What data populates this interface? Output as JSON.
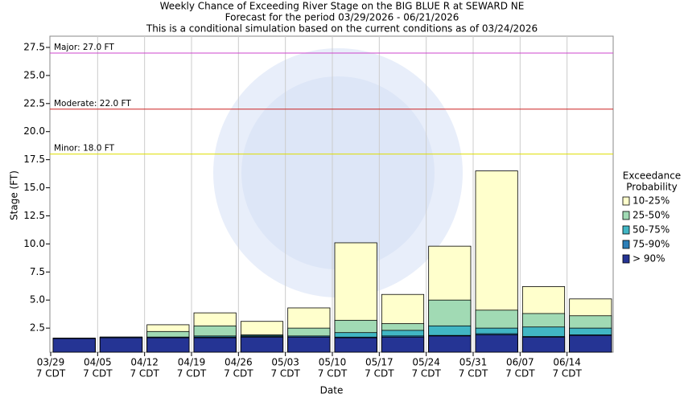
{
  "chart_data": {
    "type": "bar",
    "title_lines": [
      "Weekly Chance of Exceeding River Stage on the BIG BLUE R at SEWARD NE",
      "Forecast for the period 03/29/2026 - 06/21/2026",
      "This is a conditional simulation based on the current conditions as of 03/24/2026"
    ],
    "xlabel": "Date",
    "ylabel": "Stage (FT)",
    "categories": [
      "03/29",
      "04/05",
      "04/12",
      "04/19",
      "04/26",
      "05/03",
      "05/10",
      "05/17",
      "05/24",
      "05/31",
      "06/07",
      "06/14"
    ],
    "category_times": [
      "7 CDT",
      "7 CDT",
      "7 CDT",
      "7 CDT",
      "7 CDT",
      "7 CDT",
      "7 CDT",
      "7 CDT",
      "7 CDT",
      "7 CDT",
      "7 CDT",
      "7 CDT"
    ],
    "legend_title": [
      "Exceedance",
      "Probability"
    ],
    "series": [
      {
        "name": "10-25%",
        "color": "#ffffcc",
        "values": [
          1.6,
          1.7,
          2.8,
          3.86,
          3.1,
          4.3,
          10.1,
          5.5,
          9.8,
          16.5,
          6.2,
          5.1
        ]
      },
      {
        "name": "25-50%",
        "color": "#a1dab4",
        "values": [
          1.6,
          1.7,
          2.2,
          2.7,
          1.9,
          2.5,
          3.2,
          2.9,
          5.0,
          4.1,
          3.8,
          3.6
        ]
      },
      {
        "name": "50-75%",
        "color": "#41b6c4",
        "values": [
          1.6,
          1.7,
          1.7,
          1.8,
          1.85,
          1.8,
          2.1,
          2.3,
          2.7,
          2.5,
          2.6,
          2.5
        ]
      },
      {
        "name": "75-90%",
        "color": "#2c7fb8",
        "values": [
          1.6,
          1.7,
          1.7,
          1.7,
          1.75,
          1.8,
          1.7,
          1.8,
          1.85,
          2.0,
          1.75,
          1.9
        ]
      },
      {
        "name": "> 90%",
        "color": "#253494",
        "values": [
          1.57,
          1.64,
          1.64,
          1.64,
          1.7,
          1.7,
          1.64,
          1.7,
          1.8,
          1.9,
          1.7,
          1.85
        ]
      }
    ],
    "thresholds": [
      {
        "label": "Major: 27.0 FT",
        "value": 27.0,
        "color": "#cc44cc"
      },
      {
        "label": "Moderate: 22.0 FT",
        "value": 22.0,
        "color": "#cc2222"
      },
      {
        "label": "Minor: 18.0 FT",
        "value": 18.0,
        "color": "#dddd00"
      }
    ],
    "ylim": [
      0.36,
      28.5
    ],
    "yticks": [
      2.5,
      {
        "value": 5,
        "label": "5.0"
      },
      7.5,
      {
        "value": 10,
        "label": "10.0"
      },
      12.5,
      {
        "value": 15,
        "label": "15.0"
      },
      17.5,
      {
        "value": 20,
        "label": "20.0"
      },
      22.5,
      {
        "value": 25,
        "label": "25.0"
      },
      27.5
    ],
    "grid": "x"
  }
}
